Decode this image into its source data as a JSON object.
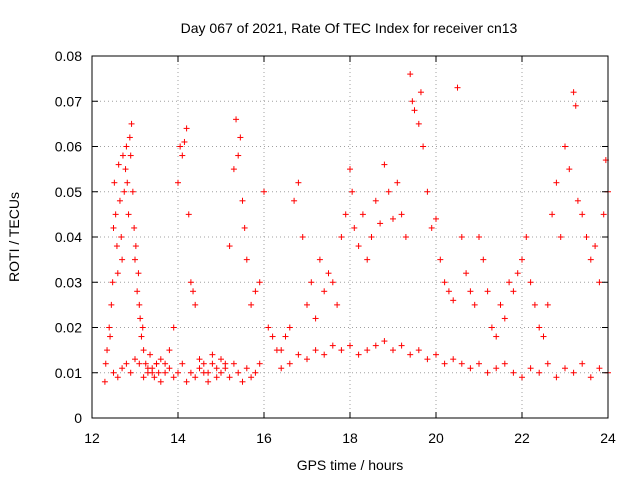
{
  "chart_data": {
    "type": "scatter",
    "title": "Day 067 of 2021, Rate Of TEC Index for receiver cn13",
    "xlabel": "GPS time / hours",
    "ylabel": "ROTI / TECUs",
    "xlim": [
      12,
      24
    ],
    "ylim": [
      0,
      0.08
    ],
    "grid": true,
    "marker": "+",
    "color": "#ff0000",
    "xticks": [
      {
        "value": 12,
        "label": "12"
      },
      {
        "value": 14,
        "label": "14"
      },
      {
        "value": 16,
        "label": "16"
      },
      {
        "value": 18,
        "label": "18"
      },
      {
        "value": 20,
        "label": "20"
      },
      {
        "value": 22,
        "label": "22"
      },
      {
        "value": 24,
        "label": "24"
      }
    ],
    "yticks": [
      {
        "value": 0,
        "label": "0"
      },
      {
        "value": 0.01,
        "label": "0.01"
      },
      {
        "value": 0.02,
        "label": "0.02"
      },
      {
        "value": 0.03,
        "label": "0.03"
      },
      {
        "value": 0.04,
        "label": "0.04"
      },
      {
        "value": 0.05,
        "label": "0.05"
      },
      {
        "value": 0.06,
        "label": "0.06"
      },
      {
        "value": 0.07,
        "label": "0.07"
      },
      {
        "value": 0.08,
        "label": "0.08"
      }
    ],
    "series": [
      {
        "name": "ROTI",
        "x": [
          12.3,
          12.32,
          12.35,
          12.4,
          12.42,
          12.45,
          12.48,
          12.5,
          12.52,
          12.55,
          12.58,
          12.6,
          12.62,
          12.65,
          12.68,
          12.7,
          12.72,
          12.75,
          12.78,
          12.8,
          12.82,
          12.85,
          12.88,
          12.9,
          12.92,
          12.95,
          12.98,
          13.0,
          13.02,
          13.05,
          13.08,
          13.1,
          13.12,
          13.15,
          13.18,
          13.2,
          13.25,
          13.3,
          13.35,
          13.4,
          13.45,
          13.5,
          13.55,
          13.6,
          13.7,
          13.8,
          13.9,
          14.0,
          14.05,
          14.1,
          14.15,
          14.2,
          14.25,
          14.3,
          14.35,
          14.4,
          14.5,
          14.6,
          14.7,
          14.8,
          14.9,
          15.0,
          15.1,
          15.2,
          15.3,
          15.35,
          15.4,
          15.45,
          15.5,
          15.55,
          15.6,
          15.7,
          15.8,
          15.9,
          16.0,
          16.1,
          16.2,
          16.3,
          16.4,
          16.5,
          16.6,
          16.7,
          16.8,
          16.9,
          17.0,
          17.1,
          17.2,
          17.3,
          17.4,
          17.5,
          17.6,
          17.7,
          17.8,
          17.9,
          18.0,
          18.05,
          18.1,
          18.2,
          18.3,
          18.4,
          18.5,
          18.6,
          18.7,
          18.8,
          18.9,
          19.0,
          19.1,
          19.2,
          19.3,
          19.4,
          19.45,
          19.5,
          19.6,
          19.65,
          19.7,
          19.8,
          19.9,
          20.0,
          20.1,
          20.2,
          20.3,
          20.4,
          20.5,
          20.6,
          20.7,
          20.8,
          20.9,
          21.0,
          21.1,
          21.2,
          21.3,
          21.4,
          21.5,
          21.6,
          21.7,
          21.8,
          21.9,
          22.0,
          22.1,
          22.2,
          22.3,
          22.4,
          22.5,
          22.6,
          22.7,
          22.8,
          22.9,
          23.0,
          23.1,
          23.2,
          23.25,
          23.3,
          23.4,
          23.5,
          23.6,
          23.7,
          23.8,
          23.9,
          23.95,
          24.0,
          12.5,
          12.6,
          12.7,
          12.8,
          12.9,
          13.0,
          13.1,
          13.2,
          13.3,
          13.4,
          13.5,
          13.6,
          13.7,
          13.8,
          13.9,
          14.0,
          14.1,
          14.2,
          14.3,
          14.4,
          14.5,
          14.6,
          14.7,
          14.8,
          14.9,
          15.0,
          15.1,
          15.2,
          15.3,
          15.4,
          15.5,
          15.6,
          15.7,
          15.8,
          15.9,
          16.4,
          16.6,
          16.8,
          17.0,
          17.2,
          17.4,
          17.6,
          17.8,
          18.0,
          18.2,
          18.4,
          18.6,
          18.8,
          19.0,
          19.2,
          19.4,
          19.6,
          19.8,
          20.0,
          20.2,
          20.4,
          20.6,
          20.8,
          21.0,
          21.2,
          21.4,
          21.6,
          21.8,
          22.0,
          22.2,
          22.4,
          22.6,
          22.8,
          23.0,
          23.2,
          23.4,
          23.6,
          23.8,
          24.0
        ],
        "y": [
          0.008,
          0.012,
          0.015,
          0.02,
          0.018,
          0.025,
          0.03,
          0.042,
          0.052,
          0.045,
          0.038,
          0.032,
          0.056,
          0.048,
          0.04,
          0.035,
          0.058,
          0.05,
          0.055,
          0.06,
          0.052,
          0.045,
          0.062,
          0.058,
          0.065,
          0.05,
          0.042,
          0.035,
          0.038,
          0.028,
          0.032,
          0.025,
          0.022,
          0.018,
          0.02,
          0.015,
          0.012,
          0.01,
          0.014,
          0.011,
          0.009,
          0.012,
          0.01,
          0.013,
          0.012,
          0.015,
          0.02,
          0.052,
          0.06,
          0.058,
          0.061,
          0.064,
          0.045,
          0.03,
          0.028,
          0.025,
          0.013,
          0.012,
          0.01,
          0.014,
          0.011,
          0.013,
          0.012,
          0.038,
          0.055,
          0.066,
          0.058,
          0.062,
          0.048,
          0.042,
          0.035,
          0.025,
          0.028,
          0.03,
          0.05,
          0.02,
          0.018,
          0.015,
          0.015,
          0.018,
          0.02,
          0.048,
          0.052,
          0.04,
          0.025,
          0.03,
          0.022,
          0.035,
          0.028,
          0.032,
          0.03,
          0.025,
          0.04,
          0.045,
          0.055,
          0.05,
          0.042,
          0.038,
          0.045,
          0.035,
          0.04,
          0.048,
          0.043,
          0.056,
          0.05,
          0.044,
          0.052,
          0.045,
          0.04,
          0.076,
          0.07,
          0.068,
          0.065,
          0.072,
          0.06,
          0.05,
          0.042,
          0.044,
          0.035,
          0.03,
          0.028,
          0.026,
          0.073,
          0.04,
          0.032,
          0.028,
          0.025,
          0.04,
          0.035,
          0.028,
          0.02,
          0.018,
          0.025,
          0.022,
          0.03,
          0.028,
          0.032,
          0.035,
          0.04,
          0.03,
          0.025,
          0.02,
          0.018,
          0.025,
          0.045,
          0.052,
          0.04,
          0.06,
          0.055,
          0.072,
          0.069,
          0.048,
          0.045,
          0.04,
          0.035,
          0.038,
          0.03,
          0.045,
          0.057,
          0.05,
          0.01,
          0.009,
          0.011,
          0.012,
          0.01,
          0.013,
          0.012,
          0.009,
          0.011,
          0.01,
          0.012,
          0.008,
          0.01,
          0.011,
          0.009,
          0.01,
          0.012,
          0.008,
          0.01,
          0.009,
          0.011,
          0.01,
          0.008,
          0.012,
          0.009,
          0.01,
          0.011,
          0.009,
          0.012,
          0.01,
          0.008,
          0.011,
          0.009,
          0.01,
          0.012,
          0.011,
          0.012,
          0.014,
          0.013,
          0.015,
          0.014,
          0.016,
          0.015,
          0.016,
          0.014,
          0.015,
          0.016,
          0.017,
          0.015,
          0.016,
          0.014,
          0.015,
          0.013,
          0.014,
          0.012,
          0.013,
          0.012,
          0.011,
          0.012,
          0.01,
          0.011,
          0.012,
          0.01,
          0.009,
          0.011,
          0.01,
          0.012,
          0.009,
          0.011,
          0.01,
          0.012,
          0.009,
          0.011,
          0.01
        ]
      }
    ]
  }
}
